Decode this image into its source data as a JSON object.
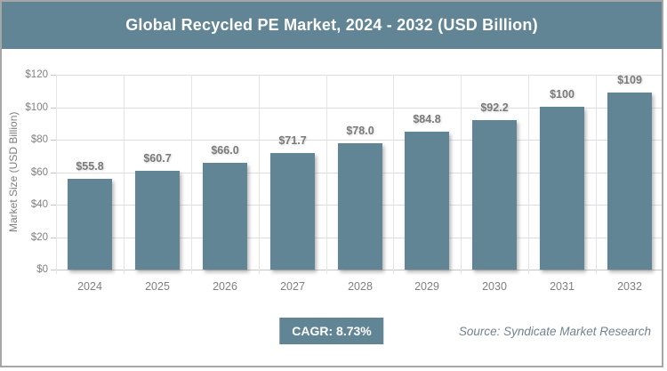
{
  "header": {
    "title": "Global Recycled PE Market, 2024 - 2032 (USD Billion)"
  },
  "footer": {
    "cagr_label": "CAGR: 8.73%",
    "source": "Source: Syndicate Market Research"
  },
  "colors": {
    "slate_accent": "#618594",
    "gridline": "#DEDEDE",
    "axis_line": "#C6C6C6",
    "label_gray": "#7F7F7F",
    "value_label_gray": "#7A7A7A",
    "source_text": "#70828E",
    "title_text": "#FFFFFF",
    "frame_border": "#A6A6A6"
  },
  "chart_data": {
    "type": "bar",
    "title": "Global Recycled PE Market, 2024 - 2032 (USD Billion)",
    "categories": [
      "2024",
      "2025",
      "2026",
      "2027",
      "2028",
      "2029",
      "2030",
      "2031",
      "2032"
    ],
    "values": [
      55.8,
      60.7,
      66.0,
      71.7,
      78.0,
      84.8,
      92.2,
      100,
      109
    ],
    "value_labels": [
      "$55.8",
      "$60.7",
      "$66.0",
      "$71.7",
      "$78.0",
      "$84.8",
      "$92.2",
      "$100",
      "$109"
    ],
    "xlabel": "",
    "ylabel": "Market Size (USD Billion)",
    "ylim": [
      0,
      120
    ],
    "ytick_step": 20,
    "ytick_labels": [
      "$0",
      "$20",
      "$40",
      "$60",
      "$80",
      "$100",
      "$120"
    ],
    "grid": true,
    "legend_position": "none",
    "bar_color": "#618594",
    "annotations": [
      "CAGR: 8.73%",
      "Source: Syndicate Market Research"
    ]
  }
}
